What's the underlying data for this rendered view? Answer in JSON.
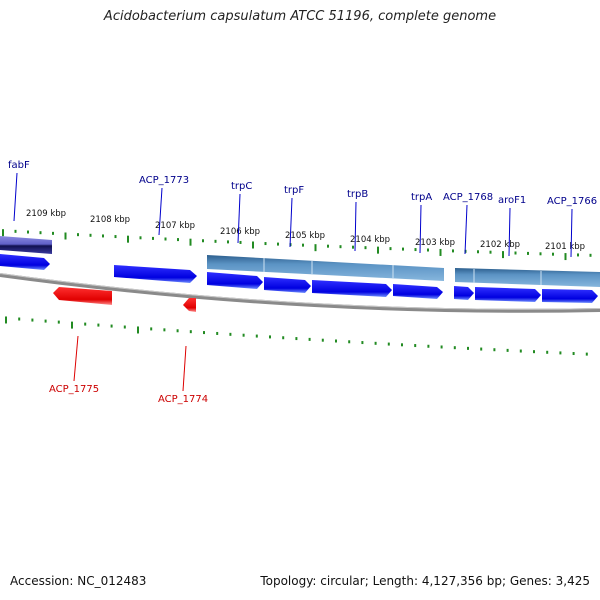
{
  "title": "Acidobacterium capsulatum ATCC 51196, complete genome",
  "footer": {
    "accession_label": "Accession:",
    "accession": "NC_012483",
    "topology_label": "Topology:",
    "topology": "circular",
    "length_label": "Length:",
    "length": "4,127,356 bp",
    "genes_label": "Genes:",
    "genes": "3,425"
  },
  "colors": {
    "forward_gene": "#0000ee",
    "reverse_gene": "#ee0000",
    "operon": "#4f86b8",
    "backbone": "#808080",
    "tick": "#228b22",
    "forward_label": "#00008b",
    "reverse_label": "#cc0000"
  },
  "scale": {
    "ticks": [
      {
        "label": "2109 kbp"
      },
      {
        "label": "2108 kbp"
      },
      {
        "label": "2107 kbp"
      },
      {
        "label": "2106 kbp"
      },
      {
        "label": "2105 kbp"
      },
      {
        "label": "2104 kbp"
      },
      {
        "label": "2103 kbp"
      },
      {
        "label": "2102 kbp"
      },
      {
        "label": "2101 kbp"
      }
    ]
  },
  "genes": {
    "forward": [
      {
        "label": "fabF"
      },
      {
        "label": "ACP_1773"
      },
      {
        "label": "trpC"
      },
      {
        "label": "trpF"
      },
      {
        "label": "trpB"
      },
      {
        "label": "trpA"
      },
      {
        "label": "ACP_1768"
      },
      {
        "label": "aroF1"
      },
      {
        "label": "ACP_1766"
      }
    ],
    "reverse": [
      {
        "label": "ACP_1775"
      },
      {
        "label": "ACP_1774"
      }
    ]
  }
}
